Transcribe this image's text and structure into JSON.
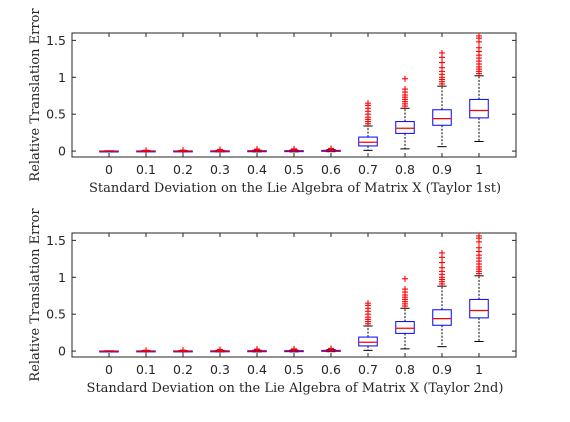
{
  "chart_data": [
    {
      "type": "box",
      "xlabel": "Standard Deviation on the Lie Algebra of Matrix X (Taylor 1st)",
      "ylabel": "Relative Translation Error",
      "categories": [
        "0",
        "0.1",
        "0.2",
        "0.3",
        "0.4",
        "0.5",
        "0.6",
        "0.7",
        "0.8",
        "0.9",
        "1"
      ],
      "ylim": [
        -0.08,
        1.6
      ],
      "yticks": [
        0,
        0.5,
        1,
        1.5
      ],
      "ytick_labels": [
        "0",
        "0.5",
        "1",
        "1.5"
      ],
      "boxes": [
        {
          "q1": -0.002,
          "median": 0.0,
          "q3": 0.002,
          "whisker_low": -0.004,
          "whisker_high": 0.004,
          "outliers": []
        },
        {
          "q1": -0.003,
          "median": 0.0,
          "q3": 0.003,
          "whisker_low": -0.006,
          "whisker_high": 0.006,
          "outliers": [
            0.012
          ]
        },
        {
          "q1": -0.003,
          "median": 0.0,
          "q3": 0.003,
          "whisker_low": -0.007,
          "whisker_high": 0.007,
          "outliers": [
            0.013
          ]
        },
        {
          "q1": -0.004,
          "median": 0.0,
          "q3": 0.004,
          "whisker_low": -0.009,
          "whisker_high": 0.009,
          "outliers": [
            0.016,
            0.022
          ]
        },
        {
          "q1": -0.004,
          "median": 0.001,
          "q3": 0.005,
          "whisker_low": -0.01,
          "whisker_high": 0.012,
          "outliers": [
            0.02,
            0.027
          ]
        },
        {
          "q1": -0.004,
          "median": 0.002,
          "q3": 0.006,
          "whisker_low": -0.01,
          "whisker_high": 0.014,
          "outliers": [
            0.022,
            0.03
          ]
        },
        {
          "q1": -0.003,
          "median": 0.004,
          "q3": 0.01,
          "whisker_low": -0.008,
          "whisker_high": 0.02,
          "outliers": [
            0.028,
            0.036
          ]
        },
        {
          "q1": 0.07,
          "median": 0.12,
          "q3": 0.19,
          "whisker_low": 0.01,
          "whisker_high": 0.34,
          "outliers": [
            0.37,
            0.4,
            0.43,
            0.46,
            0.5,
            0.54,
            0.58,
            0.62,
            0.65
          ]
        },
        {
          "q1": 0.24,
          "median": 0.31,
          "q3": 0.4,
          "whisker_low": 0.03,
          "whisker_high": 0.58,
          "outliers": [
            0.61,
            0.64,
            0.67,
            0.7,
            0.73,
            0.76,
            0.8,
            0.84,
            0.98
          ]
        },
        {
          "q1": 0.35,
          "median": 0.44,
          "q3": 0.56,
          "whisker_low": 0.06,
          "whisker_high": 0.88,
          "outliers": [
            0.91,
            0.94,
            0.97,
            1.0,
            1.04,
            1.08,
            1.13,
            1.2,
            1.27,
            1.33
          ]
        },
        {
          "q1": 0.45,
          "median": 0.55,
          "q3": 0.7,
          "whisker_low": 0.13,
          "whisker_high": 1.02,
          "outliers": [
            1.05,
            1.08,
            1.11,
            1.14,
            1.18,
            1.22,
            1.26,
            1.3,
            1.35,
            1.4,
            1.48,
            1.53,
            1.56
          ]
        }
      ]
    },
    {
      "type": "box",
      "xlabel": "Standard Deviation on the Lie Algebra of Matrix X (Taylor 2nd)",
      "ylabel": "Relative Translation Error",
      "categories": [
        "0",
        "0.1",
        "0.2",
        "0.3",
        "0.4",
        "0.5",
        "0.6",
        "0.7",
        "0.8",
        "0.9",
        "1"
      ],
      "ylim": [
        -0.08,
        1.6
      ],
      "yticks": [
        0,
        0.5,
        1,
        1.5
      ],
      "ytick_labels": [
        "0",
        "0.5",
        "1",
        "1.5"
      ],
      "boxes": [
        {
          "q1": -0.002,
          "median": 0.0,
          "q3": 0.002,
          "whisker_low": -0.004,
          "whisker_high": 0.004,
          "outliers": []
        },
        {
          "q1": -0.003,
          "median": 0.0,
          "q3": 0.003,
          "whisker_low": -0.006,
          "whisker_high": 0.006,
          "outliers": [
            0.012
          ]
        },
        {
          "q1": -0.003,
          "median": 0.0,
          "q3": 0.003,
          "whisker_low": -0.007,
          "whisker_high": 0.007,
          "outliers": [
            0.013
          ]
        },
        {
          "q1": -0.004,
          "median": 0.0,
          "q3": 0.004,
          "whisker_low": -0.009,
          "whisker_high": 0.009,
          "outliers": [
            0.016,
            0.022
          ]
        },
        {
          "q1": -0.004,
          "median": 0.001,
          "q3": 0.005,
          "whisker_low": -0.01,
          "whisker_high": 0.012,
          "outliers": [
            0.02,
            0.027
          ]
        },
        {
          "q1": -0.004,
          "median": 0.002,
          "q3": 0.006,
          "whisker_low": -0.01,
          "whisker_high": 0.014,
          "outliers": [
            0.022,
            0.03
          ]
        },
        {
          "q1": -0.003,
          "median": 0.004,
          "q3": 0.01,
          "whisker_low": -0.008,
          "whisker_high": 0.02,
          "outliers": [
            0.028,
            0.036
          ]
        },
        {
          "q1": 0.07,
          "median": 0.12,
          "q3": 0.19,
          "whisker_low": 0.01,
          "whisker_high": 0.34,
          "outliers": [
            0.37,
            0.4,
            0.43,
            0.46,
            0.5,
            0.54,
            0.58,
            0.62,
            0.65
          ]
        },
        {
          "q1": 0.24,
          "median": 0.31,
          "q3": 0.4,
          "whisker_low": 0.03,
          "whisker_high": 0.58,
          "outliers": [
            0.61,
            0.64,
            0.67,
            0.7,
            0.73,
            0.76,
            0.8,
            0.84,
            0.98
          ]
        },
        {
          "q1": 0.35,
          "median": 0.44,
          "q3": 0.56,
          "whisker_low": 0.06,
          "whisker_high": 0.88,
          "outliers": [
            0.91,
            0.94,
            0.97,
            1.0,
            1.04,
            1.08,
            1.13,
            1.2,
            1.27,
            1.33
          ]
        },
        {
          "q1": 0.45,
          "median": 0.55,
          "q3": 0.7,
          "whisker_low": 0.13,
          "whisker_high": 1.02,
          "outliers": [
            1.05,
            1.08,
            1.11,
            1.14,
            1.18,
            1.22,
            1.26,
            1.3,
            1.35,
            1.4,
            1.48,
            1.53,
            1.56
          ]
        }
      ]
    }
  ],
  "colors": {
    "box": "#0000ff",
    "median": "#ff0000",
    "whisker": "#000000",
    "outlier": "#ff0000",
    "axis": "#262626"
  }
}
